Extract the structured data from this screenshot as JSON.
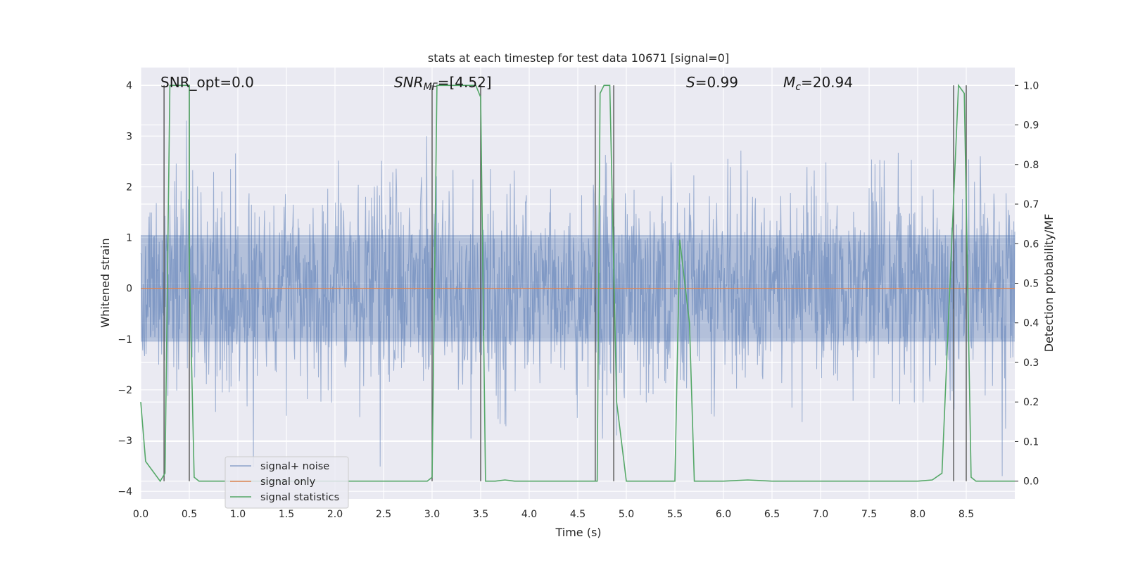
{
  "chart_data": {
    "type": "line",
    "title": "stats at each timestep for test data 10671 [signal=0]",
    "xlabel": "Time (s)",
    "ylabel": "Whitened strain",
    "y2label": "Detection probability/MF",
    "xlim": [
      0.0,
      9.0
    ],
    "ylim": [
      -4.15,
      4.35
    ],
    "y2lim": [
      -0.045,
      1.045
    ],
    "xticks": [
      "0.0",
      "0.5",
      "1.0",
      "1.5",
      "2.0",
      "2.5",
      "3.0",
      "3.5",
      "4.0",
      "4.5",
      "5.0",
      "5.5",
      "6.0",
      "6.5",
      "7.0",
      "7.5",
      "8.0",
      "8.5"
    ],
    "yticks": [
      "4",
      "3",
      "2",
      "1",
      "0",
      "−1",
      "−2",
      "−3",
      "−4"
    ],
    "y2ticks": [
      "1.0",
      "0.9",
      "0.8",
      "0.7",
      "0.6",
      "0.5",
      "0.4",
      "0.3",
      "0.2",
      "0.1",
      "0.0"
    ],
    "grid": true,
    "colors": {
      "background": "#eaeaf2",
      "grid": "#ffffff",
      "noise": "#4c72b0",
      "signal": "#dd8452",
      "stats": "#55a868",
      "vlines": "#555555"
    },
    "annotations": {
      "snr_opt": "SNR_opt=0.0",
      "snr_mf_main": "SNR",
      "snr_mf_sub": "MF",
      "snr_mf_rest": "=[4.52]",
      "s_main": "S",
      "s_rest": "=0.99",
      "mc_main": "M",
      "mc_sub": "c",
      "mc_rest": "=20.94"
    },
    "legend": {
      "location": "lower-left",
      "entries": [
        "signal+ noise",
        "signal only",
        "signal statistics"
      ]
    },
    "series": [
      {
        "name": "signal+ noise",
        "axis": "left",
        "description": "dense whitened noise, approx. gaussian, sigma ~ 1, peaks reach about +/-3.5",
        "x_range": [
          0.0,
          9.0
        ],
        "approx_std": 1.0
      },
      {
        "name": "signal only",
        "axis": "left",
        "x": [
          0.0,
          9.0
        ],
        "y": [
          0.0,
          0.0
        ]
      },
      {
        "name": "signal statistics",
        "axis": "right",
        "x": [
          0.0,
          0.05,
          0.2,
          0.25,
          0.3,
          0.5,
          0.5,
          0.55,
          0.6,
          1.0,
          2.0,
          2.95,
          3.0,
          3.05,
          3.45,
          3.5,
          3.55,
          3.65,
          3.75,
          3.85,
          4.0,
          4.5,
          4.7,
          4.73,
          4.77,
          4.83,
          4.9,
          5.0,
          5.5,
          5.55,
          5.65,
          5.7,
          6.0,
          6.25,
          6.5,
          7.0,
          8.0,
          8.15,
          8.25,
          8.35,
          8.42,
          8.48,
          8.55,
          8.6,
          9.0
        ],
        "y": [
          0.2,
          0.05,
          0.0,
          0.02,
          1.0,
          1.0,
          0.55,
          0.01,
          0.0,
          0.0,
          0.0,
          0.0,
          0.01,
          1.0,
          1.0,
          0.97,
          0.0,
          0.0,
          0.003,
          0.0,
          0.0,
          0.0,
          0.0,
          0.98,
          1.0,
          1.0,
          0.2,
          0.0,
          0.0,
          0.61,
          0.4,
          0.0,
          0.0,
          0.003,
          0.0,
          0.0,
          0.0,
          0.003,
          0.02,
          0.6,
          1.0,
          0.98,
          0.01,
          0.0,
          0.0
        ]
      }
    ],
    "vertical_lines": [
      {
        "x": 0.24,
        "y_top": 4.0
      },
      {
        "x": 0.5,
        "y_top": 4.0
      },
      {
        "x": 3.0,
        "y_top": 4.0
      },
      {
        "x": 3.5,
        "y_top": 4.0
      },
      {
        "x": 4.68,
        "y_top": 4.0
      },
      {
        "x": 4.87,
        "y_top": 4.0
      },
      {
        "x": 8.37,
        "y_top": 4.0
      },
      {
        "x": 8.5,
        "y_top": 4.0
      }
    ]
  }
}
